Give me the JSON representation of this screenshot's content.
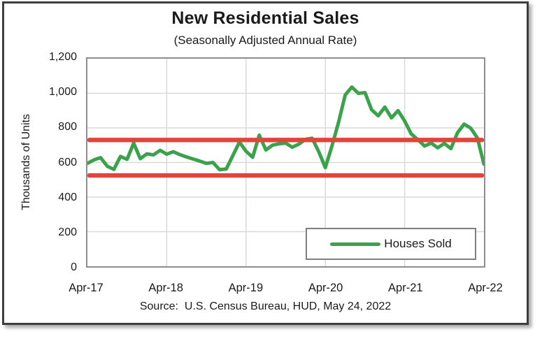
{
  "figure": {
    "title": "New Residential Sales",
    "subtitle": "(Seasonally Adjusted Annual Rate)",
    "source_note": "Source:  U.S. Census Bureau, HUD, May 24, 2022"
  },
  "legend": {
    "items": [
      {
        "label": "Houses Sold",
        "color": "#3aa24a"
      }
    ]
  },
  "colors": {
    "series_green": "#3aa24a",
    "reference_red": "#e2443b",
    "gridline": "#d9d9d9",
    "plot_border": "#8e8e8e",
    "text": "#1a1a1a"
  },
  "chart_data": {
    "type": "line",
    "title": "New Residential Sales",
    "subtitle": "(Seasonally Adjusted Annual Rate)",
    "xlabel": "",
    "ylabel": "Thousands of Units",
    "ylim": [
      0,
      1200
    ],
    "ytick_interval": 200,
    "ytick_labels": [
      "0",
      "200",
      "400",
      "600",
      "800",
      "1,000",
      "1,200"
    ],
    "xtick_labels": [
      "Apr-17",
      "Apr-18",
      "Apr-19",
      "Apr-20",
      "Apr-21",
      "Apr-22"
    ],
    "xtick_every_n_points": 12,
    "grid": true,
    "legend_position": "inside-bottom-right",
    "x": [
      "Apr-17",
      "May-17",
      "Jun-17",
      "Jul-17",
      "Aug-17",
      "Sep-17",
      "Oct-17",
      "Nov-17",
      "Dec-17",
      "Jan-18",
      "Feb-18",
      "Mar-18",
      "Apr-18",
      "May-18",
      "Jun-18",
      "Jul-18",
      "Aug-18",
      "Sep-18",
      "Oct-18",
      "Nov-18",
      "Dec-18",
      "Jan-19",
      "Feb-19",
      "Mar-19",
      "Apr-19",
      "May-19",
      "Jun-19",
      "Jul-19",
      "Aug-19",
      "Sep-19",
      "Oct-19",
      "Nov-19",
      "Dec-19",
      "Jan-20",
      "Feb-20",
      "Mar-20",
      "Apr-20",
      "May-20",
      "Jun-20",
      "Jul-20",
      "Aug-20",
      "Sep-20",
      "Oct-20",
      "Nov-20",
      "Dec-20",
      "Jan-21",
      "Feb-21",
      "Mar-21",
      "Apr-21",
      "May-21",
      "Jun-21",
      "Jul-21",
      "Aug-21",
      "Sep-21",
      "Oct-21",
      "Nov-21",
      "Dec-21",
      "Jan-22",
      "Feb-22",
      "Mar-22",
      "Apr-22"
    ],
    "series": [
      {
        "name": "Houses Sold",
        "color": "#3aa24a",
        "stroke_width": 5,
        "values": [
          595,
          615,
          628,
          578,
          560,
          635,
          618,
          712,
          622,
          650,
          644,
          670,
          648,
          662,
          645,
          632,
          620,
          608,
          595,
          600,
          558,
          562,
          640,
          718,
          665,
          630,
          758,
          672,
          700,
          708,
          712,
          688,
          706,
          734,
          740,
          662,
          570,
          695,
          832,
          990,
          1036,
          1000,
          1004,
          905,
          870,
          920,
          858,
          900,
          840,
          765,
          732,
          695,
          712,
          685,
          710,
          680,
          772,
          822,
          798,
          742,
          590
        ]
      }
    ],
    "reference_lines": [
      {
        "name": "upper-band",
        "value": 730,
        "color": "#e2443b",
        "stroke_width": 6.5
      },
      {
        "name": "lower-band",
        "value": 525,
        "color": "#e2443b",
        "stroke_width": 6.5
      }
    ]
  }
}
